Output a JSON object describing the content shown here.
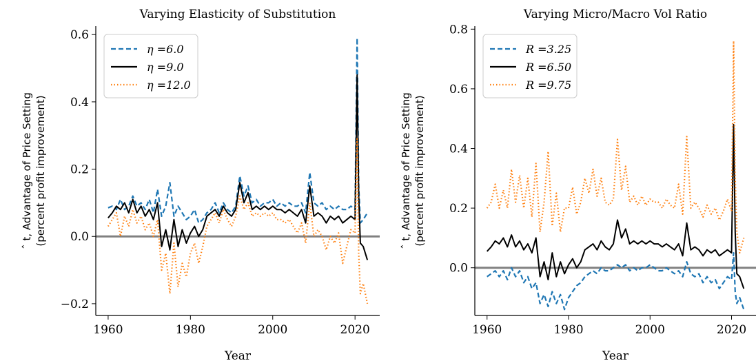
{
  "chart_data": [
    {
      "type": "line",
      "title": "Varying Elasticity of Substitution",
      "xlabel": "Year",
      "ylabel_lines": [
        "ˆ  t, Advantage of Price Setting",
        "(percent profit improvement)"
      ],
      "xlim": [
        1957,
        2026
      ],
      "ylim": [
        -0.235,
        0.625
      ],
      "xticks": [
        1960,
        1980,
        2000,
        2020
      ],
      "yticks": [
        -0.2,
        0.0,
        0.2,
        0.4,
        0.6
      ],
      "ytick_labels": [
        "−0.2",
        "0.0",
        "0.2",
        "0.4",
        "0.6"
      ],
      "hline": 0.0,
      "legend_position": "upper-left",
      "series": [
        {
          "name": "η =6.0",
          "color": "#1f77b4",
          "dash": "dashed",
          "x": [
            1960,
            1961,
            1962,
            1963,
            1964,
            1965,
            1966,
            1967,
            1968,
            1969,
            1970,
            1971,
            1972,
            1973,
            1974,
            1975,
            1976,
            1977,
            1978,
            1979,
            1980,
            1981,
            1982,
            1983,
            1984,
            1985,
            1986,
            1987,
            1988,
            1989,
            1990,
            1991,
            1992,
            1993,
            1994,
            1995,
            1996,
            1997,
            1998,
            1999,
            2000,
            2001,
            2002,
            2003,
            2004,
            2005,
            2006,
            2007,
            2008,
            2009,
            2010,
            2011,
            2012,
            2013,
            2014,
            2015,
            2016,
            2017,
            2018,
            2019,
            2020,
            2020.5,
            2020.9,
            2021.3,
            2022,
            2023
          ],
          "y": [
            0.085,
            0.09,
            0.08,
            0.11,
            0.08,
            0.09,
            0.12,
            0.09,
            0.1,
            0.08,
            0.11,
            0.07,
            0.14,
            0.06,
            0.09,
            0.16,
            0.06,
            0.09,
            0.07,
            0.05,
            0.06,
            0.08,
            0.04,
            0.05,
            0.07,
            0.08,
            0.1,
            0.07,
            0.1,
            0.08,
            0.07,
            0.09,
            0.18,
            0.12,
            0.15,
            0.1,
            0.11,
            0.09,
            0.1,
            0.1,
            0.11,
            0.09,
            0.1,
            0.09,
            0.1,
            0.09,
            0.09,
            0.1,
            0.07,
            0.19,
            0.1,
            0.09,
            0.1,
            0.08,
            0.09,
            0.08,
            0.09,
            0.08,
            0.08,
            0.09,
            0.08,
            0.59,
            0.15,
            0.04,
            0.05,
            0.07
          ]
        },
        {
          "name": "η =9.0",
          "color": "#000000",
          "dash": "solid",
          "x": [
            1960,
            1961,
            1962,
            1963,
            1964,
            1965,
            1966,
            1967,
            1968,
            1969,
            1970,
            1971,
            1972,
            1973,
            1974,
            1975,
            1976,
            1977,
            1978,
            1979,
            1980,
            1981,
            1982,
            1983,
            1984,
            1985,
            1986,
            1987,
            1988,
            1989,
            1990,
            1991,
            1992,
            1993,
            1994,
            1995,
            1996,
            1997,
            1998,
            1999,
            2000,
            2001,
            2002,
            2003,
            2004,
            2005,
            2006,
            2007,
            2008,
            2009,
            2010,
            2011,
            2012,
            2013,
            2014,
            2015,
            2016,
            2017,
            2018,
            2019,
            2020,
            2020.5,
            2020.9,
            2021.3,
            2022,
            2023
          ],
          "y": [
            0.055,
            0.07,
            0.09,
            0.08,
            0.1,
            0.07,
            0.11,
            0.07,
            0.09,
            0.06,
            0.08,
            0.05,
            0.1,
            -0.03,
            0.02,
            -0.04,
            0.05,
            -0.03,
            0.02,
            -0.02,
            0.01,
            0.03,
            0.0,
            0.02,
            0.06,
            0.07,
            0.08,
            0.06,
            0.09,
            0.07,
            0.06,
            0.08,
            0.16,
            0.1,
            0.13,
            0.08,
            0.09,
            0.08,
            0.09,
            0.08,
            0.09,
            0.08,
            0.08,
            0.07,
            0.08,
            0.07,
            0.06,
            0.08,
            0.04,
            0.15,
            0.06,
            0.07,
            0.06,
            0.04,
            0.06,
            0.05,
            0.06,
            0.04,
            0.05,
            0.06,
            0.05,
            0.48,
            0.12,
            -0.02,
            -0.03,
            -0.07
          ]
        },
        {
          "name": "η =12.0",
          "color": "#ff7f0e",
          "dash": "dotted",
          "x": [
            1960,
            1961,
            1962,
            1963,
            1964,
            1965,
            1966,
            1967,
            1968,
            1969,
            1970,
            1971,
            1972,
            1973,
            1974,
            1975,
            1976,
            1977,
            1978,
            1979,
            1980,
            1981,
            1982,
            1983,
            1984,
            1985,
            1986,
            1987,
            1988,
            1989,
            1990,
            1991,
            1992,
            1993,
            1994,
            1995,
            1996,
            1997,
            1998,
            1999,
            2000,
            2001,
            2002,
            2003,
            2004,
            2005,
            2006,
            2007,
            2008,
            2009,
            2010,
            2011,
            2012,
            2013,
            2014,
            2015,
            2016,
            2017,
            2018,
            2019,
            2020,
            2020.5,
            2020.9,
            2021.3,
            2022,
            2023
          ],
          "y": [
            0.03,
            0.05,
            0.07,
            0.0,
            0.06,
            0.03,
            0.08,
            0.04,
            0.06,
            0.02,
            0.04,
            0.0,
            0.05,
            -0.1,
            -0.05,
            -0.17,
            -0.02,
            -0.15,
            -0.08,
            -0.12,
            -0.05,
            -0.02,
            -0.08,
            -0.03,
            0.03,
            0.05,
            0.07,
            0.04,
            0.08,
            0.05,
            0.03,
            0.06,
            0.12,
            0.08,
            0.1,
            0.06,
            0.07,
            0.06,
            0.07,
            0.06,
            0.07,
            0.05,
            0.05,
            0.04,
            0.05,
            0.03,
            0.01,
            0.04,
            -0.02,
            0.1,
            0.0,
            0.02,
            0.0,
            -0.04,
            0.0,
            -0.02,
            0.01,
            -0.08,
            -0.03,
            0.02,
            0.01,
            0.29,
            -0.05,
            -0.17,
            -0.14,
            -0.2
          ]
        }
      ]
    },
    {
      "type": "line",
      "title": "Varying Micro/Macro Vol Ratio",
      "xlabel": "Year",
      "ylabel_lines": [
        "ˆ  t, Advantage of Price Setting",
        "(percent profit improvement)"
      ],
      "xlim": [
        1957,
        2026
      ],
      "ylim": [
        -0.16,
        0.81
      ],
      "xticks": [
        1960,
        1980,
        2000,
        2020
      ],
      "yticks": [
        0.0,
        0.2,
        0.4,
        0.6,
        0.8
      ],
      "ytick_labels": [
        "0.0",
        "0.2",
        "0.4",
        "0.6",
        "0.8"
      ],
      "hline": 0.0,
      "legend_position": "upper-left",
      "series": [
        {
          "name": "R =3.25",
          "color": "#1f77b4",
          "dash": "dashed",
          "x": [
            1960,
            1961,
            1962,
            1963,
            1964,
            1965,
            1966,
            1967,
            1968,
            1969,
            1970,
            1971,
            1972,
            1973,
            1974,
            1975,
            1976,
            1977,
            1978,
            1979,
            1980,
            1981,
            1982,
            1983,
            1984,
            1985,
            1986,
            1987,
            1988,
            1989,
            1990,
            1991,
            1992,
            1993,
            1994,
            1995,
            1996,
            1997,
            1998,
            1999,
            2000,
            2001,
            2002,
            2003,
            2004,
            2005,
            2006,
            2007,
            2008,
            2009,
            2010,
            2011,
            2012,
            2013,
            2014,
            2015,
            2016,
            2017,
            2018,
            2019,
            2020,
            2020.5,
            2020.9,
            2021.3,
            2022,
            2023
          ],
          "y": [
            -0.03,
            -0.02,
            -0.01,
            -0.03,
            -0.01,
            -0.04,
            0.0,
            -0.03,
            -0.01,
            -0.05,
            -0.03,
            -0.07,
            -0.05,
            -0.12,
            -0.09,
            -0.13,
            -0.08,
            -0.12,
            -0.09,
            -0.14,
            -0.1,
            -0.08,
            -0.06,
            -0.05,
            -0.03,
            -0.02,
            -0.01,
            -0.02,
            0.0,
            -0.01,
            -0.01,
            0.0,
            0.01,
            0.0,
            0.01,
            -0.01,
            0.0,
            -0.01,
            0.0,
            0.0,
            0.01,
            0.0,
            -0.01,
            -0.01,
            0.0,
            -0.01,
            -0.02,
            -0.01,
            -0.03,
            0.02,
            -0.02,
            -0.03,
            -0.02,
            -0.05,
            -0.03,
            -0.05,
            -0.04,
            -0.07,
            -0.05,
            -0.03,
            -0.04,
            0.05,
            -0.08,
            -0.12,
            -0.1,
            -0.14
          ]
        },
        {
          "name": "R =6.50",
          "color": "#000000",
          "dash": "solid",
          "x": [
            1960,
            1961,
            1962,
            1963,
            1964,
            1965,
            1966,
            1967,
            1968,
            1969,
            1970,
            1971,
            1972,
            1973,
            1974,
            1975,
            1976,
            1977,
            1978,
            1979,
            1980,
            1981,
            1982,
            1983,
            1984,
            1985,
            1986,
            1987,
            1988,
            1989,
            1990,
            1991,
            1992,
            1993,
            1994,
            1995,
            1996,
            1997,
            1998,
            1999,
            2000,
            2001,
            2002,
            2003,
            2004,
            2005,
            2006,
            2007,
            2008,
            2009,
            2010,
            2011,
            2012,
            2013,
            2014,
            2015,
            2016,
            2017,
            2018,
            2019,
            2020,
            2020.5,
            2020.9,
            2021.3,
            2022,
            2023
          ],
          "y": [
            0.055,
            0.07,
            0.09,
            0.08,
            0.1,
            0.07,
            0.11,
            0.07,
            0.09,
            0.06,
            0.08,
            0.05,
            0.1,
            -0.03,
            0.02,
            -0.04,
            0.05,
            -0.03,
            0.02,
            -0.02,
            0.01,
            0.03,
            0.0,
            0.02,
            0.06,
            0.07,
            0.08,
            0.06,
            0.09,
            0.07,
            0.06,
            0.08,
            0.16,
            0.1,
            0.13,
            0.08,
            0.09,
            0.08,
            0.09,
            0.08,
            0.09,
            0.08,
            0.08,
            0.07,
            0.08,
            0.07,
            0.06,
            0.08,
            0.04,
            0.15,
            0.06,
            0.07,
            0.06,
            0.04,
            0.06,
            0.05,
            0.06,
            0.04,
            0.05,
            0.06,
            0.05,
            0.48,
            0.12,
            -0.02,
            -0.03,
            -0.07
          ]
        },
        {
          "name": "R =9.75",
          "color": "#ff7f0e",
          "dash": "dotted",
          "x": [
            1960,
            1961,
            1962,
            1963,
            1964,
            1965,
            1966,
            1967,
            1968,
            1969,
            1970,
            1971,
            1972,
            1973,
            1974,
            1975,
            1976,
            1977,
            1978,
            1979,
            1980,
            1981,
            1982,
            1983,
            1984,
            1985,
            1986,
            1987,
            1988,
            1989,
            1990,
            1991,
            1992,
            1993,
            1994,
            1995,
            1996,
            1997,
            1998,
            1999,
            2000,
            2001,
            2002,
            2003,
            2004,
            2005,
            2006,
            2007,
            2008,
            2009,
            2010,
            2011,
            2012,
            2013,
            2014,
            2015,
            2016,
            2017,
            2018,
            2019,
            2020,
            2020.5,
            2020.9,
            2021.3,
            2022,
            2023
          ],
          "y": [
            0.2,
            0.22,
            0.28,
            0.2,
            0.26,
            0.2,
            0.33,
            0.22,
            0.31,
            0.2,
            0.3,
            0.17,
            0.35,
            0.12,
            0.22,
            0.39,
            0.14,
            0.25,
            0.12,
            0.2,
            0.2,
            0.27,
            0.18,
            0.22,
            0.3,
            0.25,
            0.33,
            0.24,
            0.3,
            0.22,
            0.21,
            0.23,
            0.43,
            0.26,
            0.34,
            0.22,
            0.24,
            0.21,
            0.24,
            0.21,
            0.23,
            0.22,
            0.22,
            0.2,
            0.23,
            0.21,
            0.2,
            0.28,
            0.18,
            0.44,
            0.2,
            0.22,
            0.2,
            0.17,
            0.21,
            0.18,
            0.2,
            0.16,
            0.19,
            0.23,
            0.19,
            0.76,
            0.3,
            0.12,
            0.05,
            0.1
          ]
        }
      ]
    }
  ]
}
